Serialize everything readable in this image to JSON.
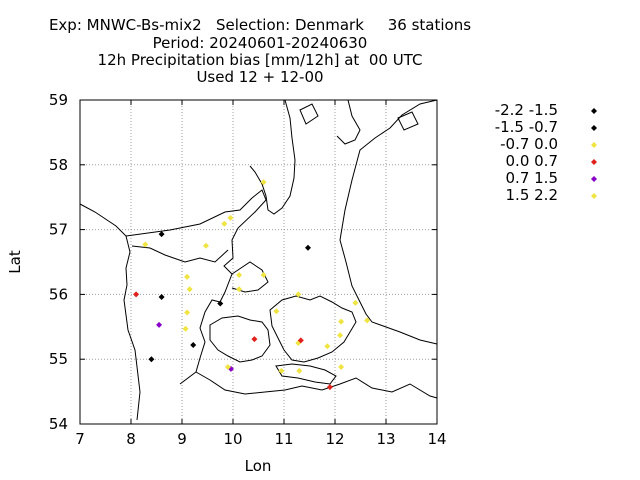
{
  "title": {
    "line1": "Exp: MNWC-Bs-mix2   Selection: Denmark     36 stations",
    "line2": "Period: 20240601-20240630",
    "line3": "12h Precipitation bias [mm/12h] at  00 UTC",
    "line4": "Used 12 + 12-00"
  },
  "chart_data": {
    "type": "scatter",
    "xlabel": "Lon",
    "ylabel": "Lat",
    "xlim": [
      7,
      14
    ],
    "ylim": [
      54,
      59
    ],
    "xticks": [
      "7",
      "8",
      "9",
      "10",
      "11",
      "12",
      "13",
      "14"
    ],
    "yticks": [
      "54",
      "55",
      "56",
      "57",
      "58",
      "59"
    ],
    "grid": true,
    "legend_position": "right",
    "legend": [
      {
        "label": "-2.2 -1.5",
        "color": "#000000"
      },
      {
        "label": "-1.5 -0.7",
        "color": "#000000"
      },
      {
        "label": "-0.7 0.0",
        "color": "#f0e442"
      },
      {
        "label": "0.0 0.7",
        "color": "#e0201a"
      },
      {
        "label": "0.7 1.5",
        "color": "#8a00c8"
      },
      {
        "label": "1.5 2.2",
        "color": "#f0e442"
      }
    ],
    "points": [
      {
        "lon": 8.6,
        "lat": 56.93,
        "class": 1
      },
      {
        "lon": 8.28,
        "lat": 56.77,
        "class": 2
      },
      {
        "lon": 8.1,
        "lat": 56.0,
        "class": 3
      },
      {
        "lon": 8.6,
        "lat": 55.96,
        "class": 1
      },
      {
        "lon": 8.55,
        "lat": 55.53,
        "class": 4
      },
      {
        "lon": 8.4,
        "lat": 55.0,
        "class": 1
      },
      {
        "lon": 9.1,
        "lat": 56.27,
        "class": 2
      },
      {
        "lon": 9.15,
        "lat": 56.08,
        "class": 2
      },
      {
        "lon": 9.1,
        "lat": 55.72,
        "class": 2
      },
      {
        "lon": 9.07,
        "lat": 55.47,
        "class": 2
      },
      {
        "lon": 9.22,
        "lat": 55.22,
        "class": 1
      },
      {
        "lon": 9.47,
        "lat": 56.75,
        "class": 2
      },
      {
        "lon": 9.83,
        "lat": 57.09,
        "class": 2
      },
      {
        "lon": 9.95,
        "lat": 57.18,
        "class": 2
      },
      {
        "lon": 10.6,
        "lat": 57.73,
        "class": 2
      },
      {
        "lon": 10.12,
        "lat": 56.3,
        "class": 2
      },
      {
        "lon": 10.6,
        "lat": 56.3,
        "class": 2
      },
      {
        "lon": 10.12,
        "lat": 56.08,
        "class": 2
      },
      {
        "lon": 9.75,
        "lat": 55.86,
        "class": 1
      },
      {
        "lon": 10.85,
        "lat": 55.74,
        "class": 2
      },
      {
        "lon": 10.42,
        "lat": 55.31,
        "class": 3
      },
      {
        "lon": 9.96,
        "lat": 54.85,
        "class": 4
      },
      {
        "lon": 9.9,
        "lat": 54.88,
        "class": 2
      },
      {
        "lon": 11.47,
        "lat": 56.72,
        "class": 1
      },
      {
        "lon": 11.28,
        "lat": 56.0,
        "class": 2
      },
      {
        "lon": 11.28,
        "lat": 55.25,
        "class": 2
      },
      {
        "lon": 11.33,
        "lat": 55.29,
        "class": 3
      },
      {
        "lon": 10.95,
        "lat": 54.82,
        "class": 2
      },
      {
        "lon": 11.3,
        "lat": 54.82,
        "class": 2
      },
      {
        "lon": 11.9,
        "lat": 54.57,
        "class": 3
      },
      {
        "lon": 11.85,
        "lat": 55.2,
        "class": 2
      },
      {
        "lon": 12.12,
        "lat": 55.58,
        "class": 2
      },
      {
        "lon": 12.1,
        "lat": 55.37,
        "class": 2
      },
      {
        "lon": 12.12,
        "lat": 54.88,
        "class": 2
      },
      {
        "lon": 12.4,
        "lat": 55.87,
        "class": 2
      },
      {
        "lon": 12.63,
        "lat": 55.6,
        "class": 2
      }
    ]
  }
}
